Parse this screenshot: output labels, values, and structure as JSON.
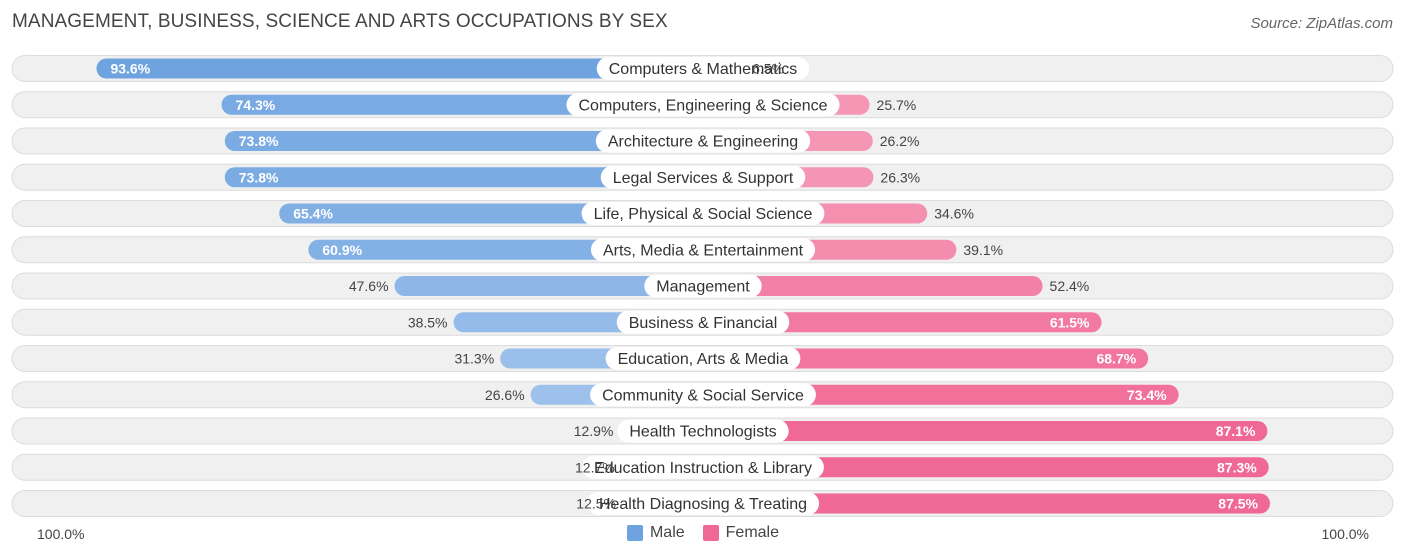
{
  "colors": {
    "male": "#6fa3e0",
    "male_light": "#a9c9ee",
    "female": "#f06895",
    "female_light": "#f7a6c0",
    "row_bg": "#f0f0f0"
  },
  "legend": {
    "male_label": "Male",
    "female_label": "Female"
  },
  "chart_data": {
    "type": "bar",
    "orientation": "horizontal-diverging",
    "title": "MANAGEMENT, BUSINESS, SCIENCE AND ARTS OCCUPATIONS BY SEX",
    "source": "Source: ZipAtlas.com",
    "axis_left_label": "100.0%",
    "axis_right_label": "100.0%",
    "xlim": [
      -100,
      100
    ],
    "categories": [
      "Computers & Mathematics",
      "Computers, Engineering & Science",
      "Architecture & Engineering",
      "Legal Services & Support",
      "Life, Physical & Social Science",
      "Arts, Media & Entertainment",
      "Management",
      "Business & Financial",
      "Education, Arts & Media",
      "Community & Social Service",
      "Health Technologists",
      "Education Instruction & Library",
      "Health Diagnosing & Treating"
    ],
    "series": [
      {
        "name": "Male",
        "values": [
          93.6,
          74.3,
          73.8,
          73.8,
          65.4,
          60.9,
          47.6,
          38.5,
          31.3,
          26.6,
          12.9,
          12.7,
          12.5
        ],
        "labels": [
          "93.6%",
          "74.3%",
          "73.8%",
          "73.8%",
          "65.4%",
          "60.9%",
          "47.6%",
          "38.5%",
          "31.3%",
          "26.6%",
          "12.9%",
          "12.7%",
          "12.5%"
        ]
      },
      {
        "name": "Female",
        "values": [
          6.5,
          25.7,
          26.2,
          26.3,
          34.6,
          39.1,
          52.4,
          61.5,
          68.7,
          73.4,
          87.1,
          87.3,
          87.5
        ],
        "labels": [
          "6.5%",
          "25.7%",
          "26.2%",
          "26.3%",
          "34.6%",
          "39.1%",
          "52.4%",
          "61.5%",
          "68.7%",
          "73.4%",
          "87.1%",
          "87.3%",
          "87.5%"
        ]
      }
    ]
  }
}
